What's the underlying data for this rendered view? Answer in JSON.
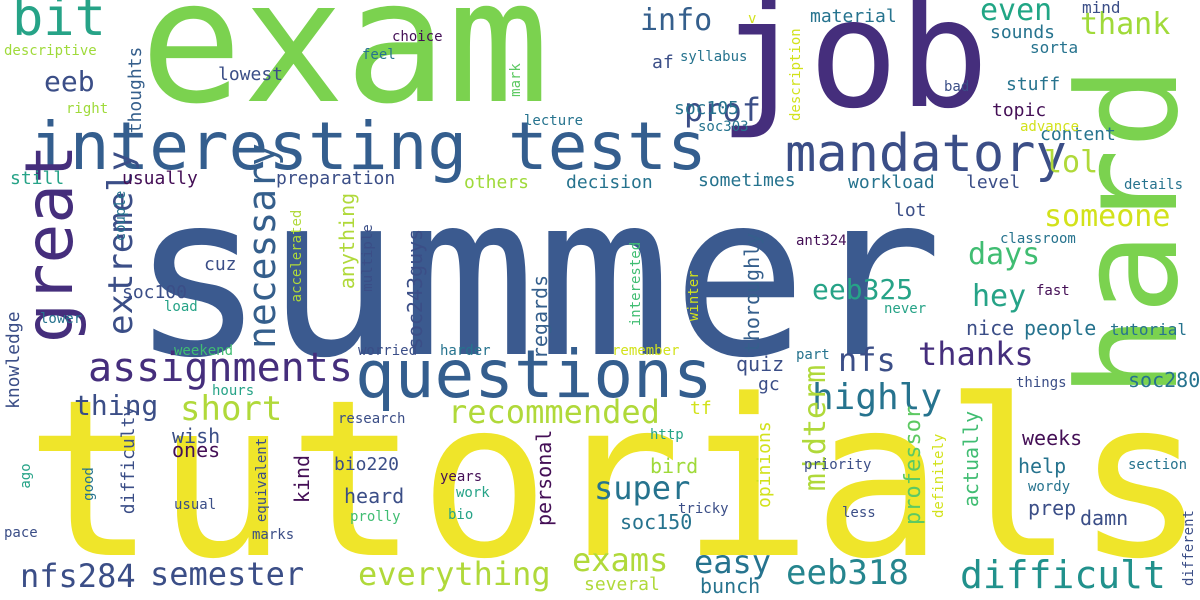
{
  "words": [
    {
      "text": "summer",
      "color": "#3b5a8f"
    },
    {
      "text": "tutorials",
      "color": "#efe52a"
    },
    {
      "text": "exam",
      "color": "#7bd24f"
    },
    {
      "text": "job",
      "color": "#452e7c"
    },
    {
      "text": "hard",
      "color": "#7bd24f"
    },
    {
      "text": "interesting",
      "color": "#345e8e"
    },
    {
      "text": "tests",
      "color": "#345e8e"
    },
    {
      "text": "questions",
      "color": "#345e8e"
    },
    {
      "text": "mandatory",
      "color": "#3b4e87"
    },
    {
      "text": "great",
      "color": "#452e7c"
    },
    {
      "text": "bit",
      "color": "#26a387"
    },
    {
      "text": "assignments",
      "color": "#452e7c"
    },
    {
      "text": "necessary",
      "color": "#355f8c"
    },
    {
      "text": "extremely",
      "color": "#3b4e87"
    },
    {
      "text": "difficult",
      "color": "#21918c"
    },
    {
      "text": "everything",
      "color": "#b0d93a"
    },
    {
      "text": "semester",
      "color": "#3b4e87"
    },
    {
      "text": "exams",
      "color": "#b0d93a"
    },
    {
      "text": "eeb318",
      "color": "#25858e"
    },
    {
      "text": "eeb325",
      "color": "#26a387"
    },
    {
      "text": "nfs284",
      "color": "#3b4e87"
    },
    {
      "text": "super",
      "color": "#26738e"
    },
    {
      "text": "highly",
      "color": "#26738e"
    },
    {
      "text": "recommended",
      "color": "#b0d93a"
    },
    {
      "text": "short",
      "color": "#b0d93a"
    },
    {
      "text": "thanks",
      "color": "#452e7c"
    },
    {
      "text": "easy",
      "color": "#26738e"
    },
    {
      "text": "nfs",
      "color": "#3b4e87"
    },
    {
      "text": "someone",
      "color": "#d2e21b"
    },
    {
      "text": "days",
      "color": "#40bd72"
    },
    {
      "text": "hey",
      "color": "#26a387"
    },
    {
      "text": "prof",
      "color": "#3b4e87"
    },
    {
      "text": "info",
      "color": "#355f8c"
    },
    {
      "text": "even",
      "color": "#21a685"
    },
    {
      "text": "thank",
      "color": "#a0da39"
    },
    {
      "text": "lol",
      "color": "#b0d93a"
    },
    {
      "text": "eeb",
      "color": "#3b4e87"
    },
    {
      "text": "midterm",
      "color": "#b0d93a"
    },
    {
      "text": "thing",
      "color": "#3b4e87"
    },
    {
      "text": "quiz",
      "color": "#3b4e87"
    },
    {
      "text": "professor",
      "color": "#5dc962"
    },
    {
      "text": "actually",
      "color": "#40bd72"
    },
    {
      "text": "weeks",
      "color": "#440f56"
    },
    {
      "text": "help",
      "color": "#26738e"
    },
    {
      "text": "prep",
      "color": "#3b4e87"
    },
    {
      "text": "damn",
      "color": "#3b4e87"
    },
    {
      "text": "soc280",
      "color": "#26738e"
    },
    {
      "text": "nice",
      "color": "#3b4e87"
    },
    {
      "text": "people",
      "color": "#26738e"
    },
    {
      "text": "tutorial",
      "color": "#26738e"
    },
    {
      "text": "wish",
      "color": "#3b4e87"
    },
    {
      "text": "ones",
      "color": "#440f56"
    },
    {
      "text": "bird",
      "color": "#9fda3a"
    },
    {
      "text": "soc150",
      "color": "#26738e"
    },
    {
      "text": "heard",
      "color": "#3b4e87"
    },
    {
      "text": "personal",
      "color": "#440f56"
    },
    {
      "text": "bunch",
      "color": "#26738e"
    },
    {
      "text": "several",
      "color": "#b0d93a"
    },
    {
      "text": "kind",
      "color": "#440f56"
    },
    {
      "text": "bio220",
      "color": "#3b4e87"
    },
    {
      "text": "regards",
      "color": "#355f8c"
    },
    {
      "text": "soc243guys",
      "color": "#3b4e87"
    },
    {
      "text": "anything",
      "color": "#b0d93a"
    },
    {
      "text": "thoroughly",
      "color": "#355f8c"
    },
    {
      "text": "preparation",
      "color": "#3b4e87"
    },
    {
      "text": "usually",
      "color": "#440f56"
    },
    {
      "text": "others",
      "color": "#9fda3a"
    },
    {
      "text": "decision",
      "color": "#26738e"
    },
    {
      "text": "sometimes",
      "color": "#26738e"
    },
    {
      "text": "workload",
      "color": "#26738e"
    },
    {
      "text": "level",
      "color": "#3b4e87"
    },
    {
      "text": "lot",
      "color": "#3b4e87"
    },
    {
      "text": "content",
      "color": "#26738e"
    },
    {
      "text": "topic",
      "color": "#440f56"
    },
    {
      "text": "stuff",
      "color": "#26738e"
    },
    {
      "text": "sounds",
      "color": "#26738e"
    },
    {
      "text": "sorta",
      "color": "#26738e"
    },
    {
      "text": "mind",
      "color": "#3b4e87"
    },
    {
      "text": "advance",
      "color": "#d2e21b"
    },
    {
      "text": "details",
      "color": "#26738e"
    },
    {
      "text": "classroom",
      "color": "#26738e"
    },
    {
      "text": "fast",
      "color": "#440f56"
    },
    {
      "text": "never",
      "color": "#26a387"
    },
    {
      "text": "ant324",
      "color": "#440f56"
    },
    {
      "text": "material",
      "color": "#26738e"
    },
    {
      "text": "soc105",
      "color": "#26738e"
    },
    {
      "text": "soc303",
      "color": "#26738e"
    },
    {
      "text": "af",
      "color": "#3b4e87"
    },
    {
      "text": "syllabus",
      "color": "#26738e"
    },
    {
      "text": "lecture",
      "color": "#26738e"
    },
    {
      "text": "description",
      "color": "#d2e21b"
    },
    {
      "text": "mark",
      "color": "#5dc962"
    },
    {
      "text": "lowest",
      "color": "#3b4e87"
    },
    {
      "text": "choice",
      "color": "#440f56"
    },
    {
      "text": "feel",
      "color": "#26738e"
    },
    {
      "text": "thoughts",
      "color": "#355f8c"
    },
    {
      "text": "descriptive",
      "color": "#9fda3a"
    },
    {
      "text": "right",
      "color": "#9fda3a"
    },
    {
      "text": "still",
      "color": "#26a387"
    },
    {
      "text": "couple",
      "color": "#26738e"
    },
    {
      "text": "cuz",
      "color": "#3b4e87"
    },
    {
      "text": "soc100",
      "color": "#3b4e87"
    },
    {
      "text": "load",
      "color": "#26a387"
    },
    {
      "text": "lower",
      "color": "#26738e"
    },
    {
      "text": "knowledge",
      "color": "#3b4e87"
    },
    {
      "text": "weekend",
      "color": "#40bd72"
    },
    {
      "text": "worried",
      "color": "#3b4e87"
    },
    {
      "text": "harder",
      "color": "#26738e"
    },
    {
      "text": "remember",
      "color": "#d2e21b"
    },
    {
      "text": "multiple",
      "color": "#3b4e87"
    },
    {
      "text": "accelerated",
      "color": "#b0d93a"
    },
    {
      "text": "interested",
      "color": "#40bd72"
    },
    {
      "text": "winter",
      "color": "#d2e21b"
    },
    {
      "text": "hours",
      "color": "#26a387"
    },
    {
      "text": "difficulty",
      "color": "#3b4e87"
    },
    {
      "text": "research",
      "color": "#3b4e87"
    },
    {
      "text": "http",
      "color": "#26a387"
    },
    {
      "text": "tf",
      "color": "#d2e21b"
    },
    {
      "text": "gc",
      "color": "#3b4e87"
    },
    {
      "text": "part",
      "color": "#26738e"
    },
    {
      "text": "things",
      "color": "#3b4e87"
    },
    {
      "text": "bad",
      "color": "#3b4e87"
    },
    {
      "text": "v",
      "color": "#d2e21b"
    },
    {
      "text": "ago",
      "color": "#26a387"
    },
    {
      "text": "good",
      "color": "#26738e"
    },
    {
      "text": "equivalent",
      "color": "#3b4e87"
    },
    {
      "text": "usual",
      "color": "#3b4e87"
    },
    {
      "text": "marks",
      "color": "#3b4e87"
    },
    {
      "text": "pace",
      "color": "#3b4e87"
    },
    {
      "text": "years",
      "color": "#440f56"
    },
    {
      "text": "work",
      "color": "#26a387"
    },
    {
      "text": "prolly",
      "color": "#40bd72"
    },
    {
      "text": "bio",
      "color": "#26a387"
    },
    {
      "text": "tricky",
      "color": "#3b4e87"
    },
    {
      "text": "opinions",
      "color": "#d2e21b"
    },
    {
      "text": "priority",
      "color": "#3b4e87"
    },
    {
      "text": "definitely",
      "color": "#d2e21b"
    },
    {
      "text": "wordy",
      "color": "#26738e"
    },
    {
      "text": "less",
      "color": "#3b4e87"
    },
    {
      "text": "section",
      "color": "#26738e"
    },
    {
      "text": "different",
      "color": "#3b4e87"
    }
  ]
}
